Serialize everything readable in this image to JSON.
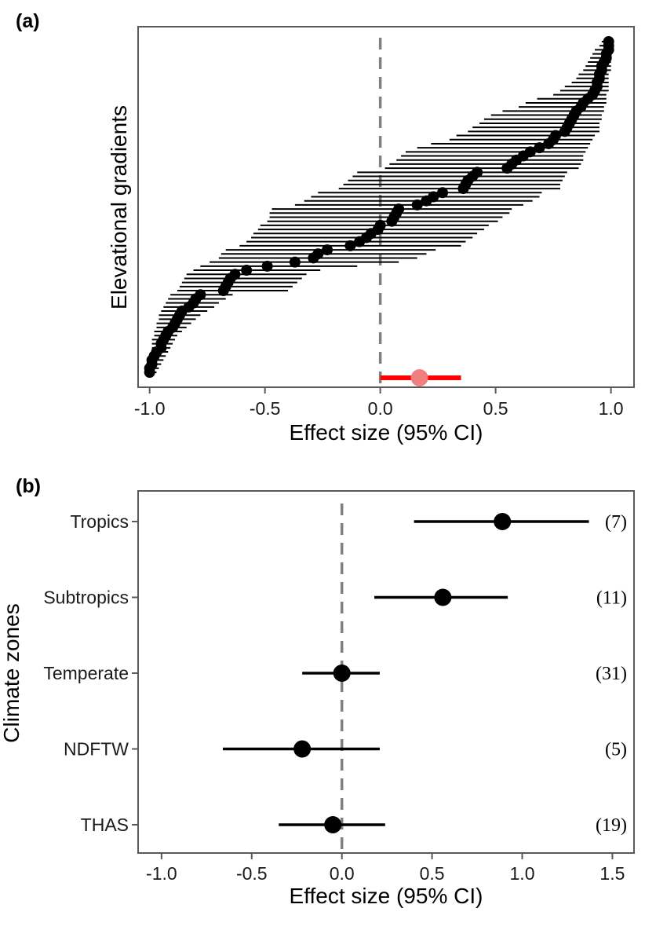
{
  "colors": {
    "point": "#000000",
    "overall_line": "#ff0000",
    "overall_point": "#f08080",
    "zero_line": "#808080",
    "frame": "#595959"
  },
  "chart_data": [
    {
      "panel": "(a)",
      "type": "scatter",
      "description_type": "forest-plot",
      "xlabel": "Effect size (95% CI)",
      "ylabel": "Elevational gradients",
      "xlim": [
        -1.05,
        1.1
      ],
      "xticks": [
        "-1.0",
        "-0.5",
        "0.0",
        "0.5",
        "1.0"
      ],
      "tick_values": [
        -1.0,
        -0.5,
        0.0,
        0.5,
        1.0
      ],
      "reference_line": 0.0,
      "overall": {
        "estimate": 0.17,
        "lower": 0.0,
        "upper": 0.35
      },
      "studies": [
        [
          -1.0,
          -1.0,
          -0.97
        ],
        [
          -1.0,
          -1.0,
          -0.96
        ],
        [
          -0.99,
          -1.0,
          -0.95
        ],
        [
          -0.99,
          -1.0,
          -0.94
        ],
        [
          -0.98,
          -1.0,
          -0.93
        ],
        [
          -0.97,
          -0.99,
          -0.92
        ],
        [
          -0.95,
          -0.99,
          -0.91
        ],
        [
          -0.95,
          -0.99,
          -0.9
        ],
        [
          -0.94,
          -0.99,
          -0.89
        ],
        [
          -0.93,
          -0.98,
          -0.88
        ],
        [
          -0.92,
          -0.98,
          -0.86
        ],
        [
          -0.9,
          -0.97,
          -0.84
        ],
        [
          -0.89,
          -0.97,
          -0.82
        ],
        [
          -0.88,
          -0.96,
          -0.8
        ],
        [
          -0.87,
          -0.96,
          -0.78
        ],
        [
          -0.86,
          -0.95,
          -0.75
        ],
        [
          -0.83,
          -0.94,
          -0.72
        ],
        [
          -0.81,
          -0.93,
          -0.7
        ],
        [
          -0.8,
          -0.92,
          -0.67
        ],
        [
          -0.78,
          -0.91,
          -0.64
        ],
        [
          -0.68,
          -0.88,
          -0.4
        ],
        [
          -0.67,
          -0.87,
          -0.38
        ],
        [
          -0.66,
          -0.86,
          -0.36
        ],
        [
          -0.65,
          -0.85,
          -0.34
        ],
        [
          -0.63,
          -0.84,
          -0.32
        ],
        [
          -0.58,
          -0.81,
          -0.26
        ],
        [
          -0.49,
          -0.78,
          -0.1
        ],
        [
          -0.37,
          -0.74,
          0.08
        ],
        [
          -0.29,
          -0.7,
          0.16
        ],
        [
          -0.27,
          -0.69,
          0.2
        ],
        [
          -0.23,
          -0.67,
          0.24
        ],
        [
          -0.13,
          -0.61,
          0.35
        ],
        [
          -0.09,
          -0.58,
          0.37
        ],
        [
          -0.06,
          -0.56,
          0.4
        ],
        [
          -0.04,
          -0.55,
          0.42
        ],
        [
          -0.01,
          -0.53,
          0.45
        ],
        [
          0.0,
          -0.52,
          0.47
        ],
        [
          0.05,
          -0.49,
          0.51
        ],
        [
          0.06,
          -0.48,
          0.53
        ],
        [
          0.07,
          -0.48,
          0.56
        ],
        [
          0.08,
          -0.47,
          0.57
        ],
        [
          0.16,
          -0.37,
          0.62
        ],
        [
          0.2,
          -0.33,
          0.66
        ],
        [
          0.23,
          -0.3,
          0.69
        ],
        [
          0.27,
          -0.27,
          0.7
        ],
        [
          0.36,
          -0.18,
          0.78
        ],
        [
          0.37,
          -0.16,
          0.78
        ],
        [
          0.38,
          -0.14,
          0.79
        ],
        [
          0.4,
          -0.12,
          0.8
        ],
        [
          0.42,
          -0.1,
          0.81
        ],
        [
          0.55,
          0.02,
          0.86
        ],
        [
          0.57,
          0.04,
          0.87
        ],
        [
          0.59,
          0.07,
          0.88
        ],
        [
          0.62,
          0.09,
          0.88
        ],
        [
          0.65,
          0.11,
          0.89
        ],
        [
          0.69,
          0.16,
          0.9
        ],
        [
          0.73,
          0.22,
          0.91
        ],
        [
          0.75,
          0.3,
          0.92
        ],
        [
          0.76,
          0.33,
          0.93
        ],
        [
          0.8,
          0.38,
          0.95
        ],
        [
          0.81,
          0.4,
          0.95
        ],
        [
          0.82,
          0.43,
          0.95
        ],
        [
          0.83,
          0.45,
          0.96
        ],
        [
          0.84,
          0.48,
          0.96
        ],
        [
          0.85,
          0.53,
          0.97
        ],
        [
          0.87,
          0.6,
          0.97
        ],
        [
          0.88,
          0.63,
          0.98
        ],
        [
          0.9,
          0.68,
          0.98
        ],
        [
          0.92,
          0.75,
          0.98
        ],
        [
          0.93,
          0.78,
          0.99
        ],
        [
          0.94,
          0.8,
          0.99
        ],
        [
          0.94,
          0.83,
          0.99
        ],
        [
          0.95,
          0.85,
          0.99
        ],
        [
          0.95,
          0.86,
          0.99
        ],
        [
          0.96,
          0.88,
          1.0
        ],
        [
          0.96,
          0.89,
          1.0
        ],
        [
          0.97,
          0.9,
          1.0
        ],
        [
          0.98,
          0.91,
          1.0
        ],
        [
          0.98,
          0.92,
          1.0
        ],
        [
          0.99,
          0.93,
          1.0
        ],
        [
          0.99,
          0.95,
          1.0
        ],
        [
          0.99,
          0.96,
          1.0
        ]
      ]
    },
    {
      "panel": "(b)",
      "type": "scatter",
      "description_type": "forest-plot",
      "xlabel": "Effect size (95% CI)",
      "ylabel": "Climate zones",
      "xlim": [
        -1.13,
        1.62
      ],
      "xticks": [
        "-1.0",
        "-0.5",
        "0.0",
        "0.5",
        "1.0",
        "1.5"
      ],
      "tick_values": [
        -1.0,
        -0.5,
        0.0,
        0.5,
        1.0,
        1.5
      ],
      "reference_line": 0.0,
      "zones": [
        {
          "label": "Tropics",
          "estimate": 0.89,
          "lower": 0.4,
          "upper": 1.37,
          "n": "(7)"
        },
        {
          "label": "Subtropics",
          "estimate": 0.56,
          "lower": 0.18,
          "upper": 0.92,
          "n": "(11)"
        },
        {
          "label": "Temperate",
          "estimate": 0.0,
          "lower": -0.22,
          "upper": 0.21,
          "n": "(31)"
        },
        {
          "label": "NDFTW",
          "estimate": -0.22,
          "lower": -0.66,
          "upper": 0.21,
          "n": "(5)"
        },
        {
          "label": "THAS",
          "estimate": -0.05,
          "lower": -0.35,
          "upper": 0.24,
          "n": "(19)"
        }
      ]
    }
  ]
}
